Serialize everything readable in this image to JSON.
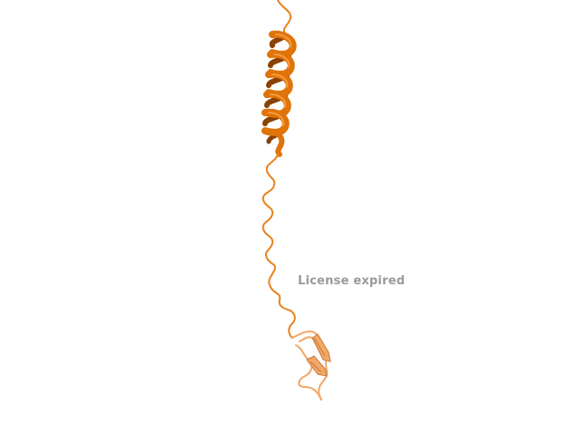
{
  "viewer": {
    "watermark_text": "License expired"
  },
  "colors": {
    "background": "#ffffff",
    "helix_main": "#e0730a",
    "helix_dark": "#8a4104",
    "helix_light": "#f39a3c",
    "coil": "#e9821f",
    "sheet": "#f2a867",
    "sheet_dark": "#c9783a",
    "watermark": "#9a9a9a"
  },
  "scene": {
    "type": "protein-cartoon",
    "elements": [
      "coil",
      "alpha-helix",
      "coil",
      "beta-sheet"
    ]
  }
}
